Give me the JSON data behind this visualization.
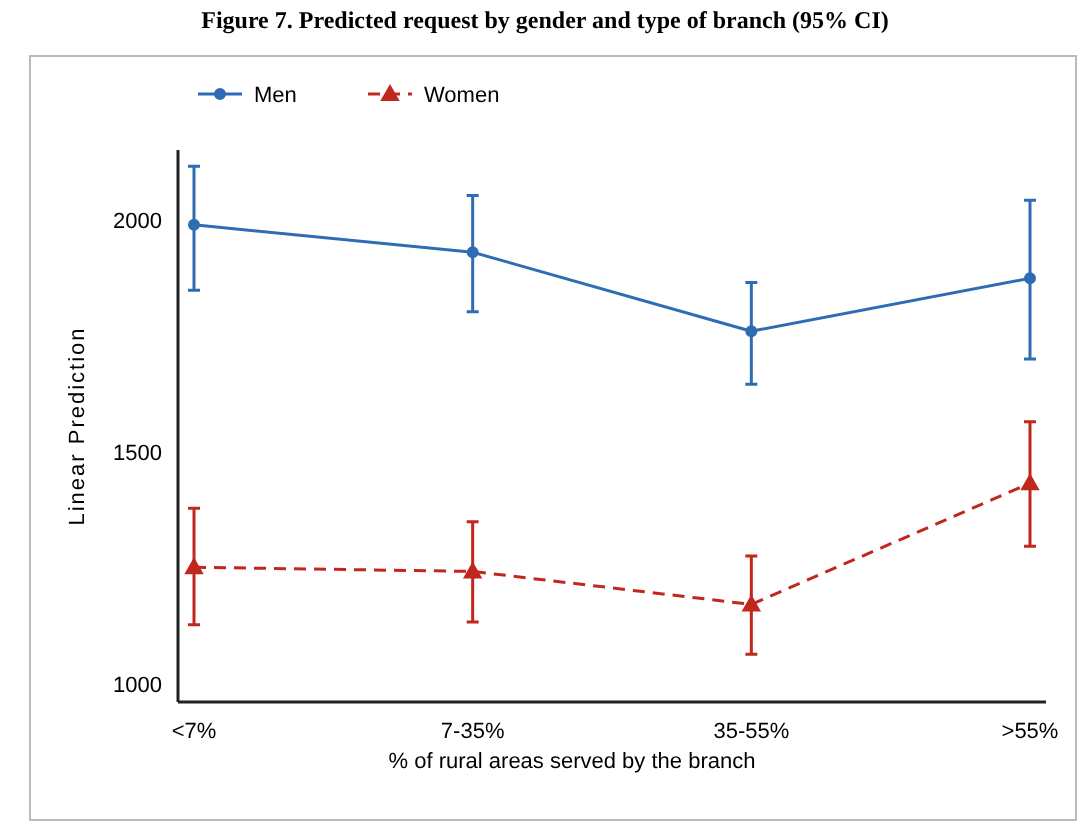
{
  "chart_data": {
    "type": "line",
    "title": "Figure 7. Predicted request by gender and type of branch (95% CI)",
    "xlabel": "% of rural areas served by the branch",
    "ylabel": "Linear Prediction",
    "categories": [
      "<7%",
      "7-35%",
      "35-55%",
      ">55%"
    ],
    "series": [
      {
        "name": "Men",
        "color": "#2e6db4",
        "values": [
          1989,
          1930,
          1760,
          1874
        ],
        "errors": [
          [
            1848,
            2115
          ],
          [
            1802,
            2052
          ],
          [
            1646,
            1865
          ],
          [
            1700,
            2042
          ]
        ],
        "marker": "circle",
        "line_style": "solid"
      },
      {
        "name": "Women",
        "color": "#c0281e",
        "values": [
          1252,
          1243,
          1172,
          1433
        ],
        "errors": [
          [
            1128,
            1379
          ],
          [
            1134,
            1350
          ],
          [
            1065,
            1276
          ],
          [
            1297,
            1565
          ]
        ],
        "marker": "triangle",
        "line_style": "dashed"
      }
    ],
    "ylim": [
      962,
      2150
    ],
    "yticks": [
      1000,
      1500,
      2000
    ],
    "grid": false,
    "legend": "top left"
  }
}
